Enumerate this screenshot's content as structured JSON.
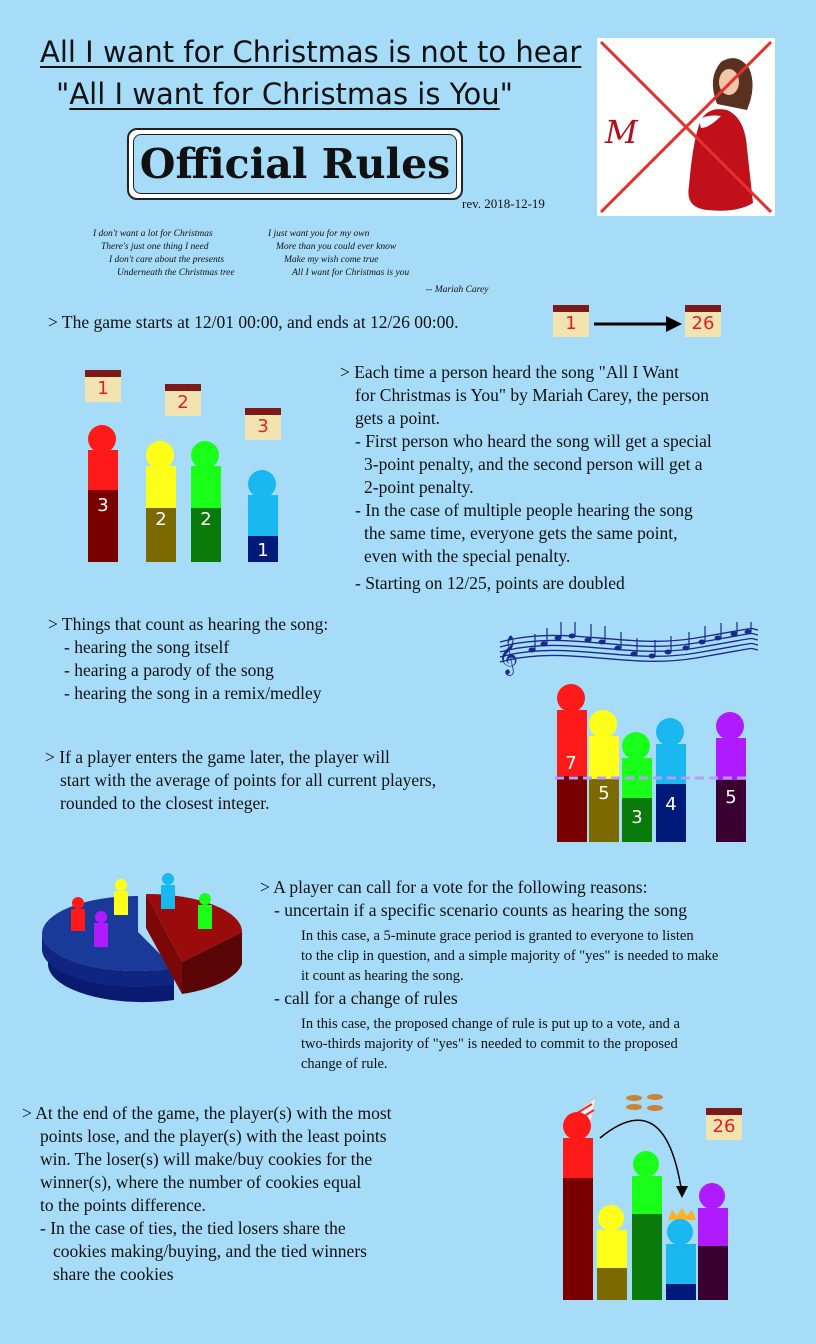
{
  "header": {
    "title_line1": "All I want for Christmas is not to hear",
    "title_line2_q1": "\"",
    "title_line2_u": "All I want for Christmas is You",
    "title_line2_q2": "\"",
    "official": "Official Rules",
    "revision": "rev. 2018-12-19"
  },
  "album_art": {
    "monogram": "M",
    "cross_color": "#e53030"
  },
  "lyrics": {
    "col1": [
      "I don't want a lot for Christmas",
      "There's just one thing I need",
      "I don't care about the presents",
      "Underneath the Christmas tree"
    ],
    "col2": [
      "I just want you for my own",
      "More than you could ever know",
      "Make my wish come true",
      "All I want for Christmas is you"
    ],
    "attribution": "-- Mariah Carey"
  },
  "rules": {
    "start": "> The game starts at 12/01 00:00, and ends at 12/26 00:00.",
    "points": [
      "> Each time a person heard the song \"All I Want",
      "for Christmas is You\" by Mariah Carey, the person",
      "gets a point.",
      "- First person who heard the song will get a special",
      "3-point penalty, and the second person will get a",
      "2-point penalty.",
      "- In the case of multiple people hearing the song",
      "the same time, everyone gets the same point,",
      "even with the special penalty.",
      "- Starting on 12/25, points are doubled"
    ],
    "counts": [
      "> Things that count as hearing the song:",
      "- hearing the song itself",
      "- hearing a parody of the song",
      "- hearing the song in a remix/medley"
    ],
    "late": [
      "> If a player enters the game later, the player will",
      "start with the average of points for all current players,",
      "rounded to the closest integer."
    ],
    "vote": {
      "intro": "> A player can call for a vote for the following reasons:",
      "reason1": "- uncertain if a specific scenario counts as hearing the song",
      "detail1": [
        "In this case, a 5-minute grace period is granted to everyone to listen",
        "to the clip in question, and a simple majority of \"yes\" is needed to make",
        "it count as hearing the song."
      ],
      "reason2": "- call for a change of rules",
      "detail2": [
        "In this case, the proposed change of rule is put up to a vote, and a",
        "two-thirds majority of \"yes\" is needed to commit to the proposed",
        "change of rule."
      ]
    },
    "end": [
      "> At the end of the game, the player(s) with the most",
      "points lose, and the player(s) with the least points",
      "win. The loser(s) will make/buy cookies for the",
      "winner(s), where the number of cookies equal",
      "to the points difference.",
      "- In the case of ties, the tied losers share the",
      "cookies making/buying, and the tied winners",
      "share the cookies"
    ]
  },
  "calendars": {
    "start_day": "1",
    "end_day": "26",
    "podium": [
      "1",
      "2",
      "3"
    ],
    "final": "26"
  },
  "podium_scores": [
    "3",
    "2",
    "2",
    "1"
  ],
  "late_scores": [
    "7",
    "5",
    "3",
    "4",
    "5"
  ],
  "colors": {
    "background": "#a6dcf8",
    "red": "#ff1a1a",
    "dark_red": "#7a0000",
    "yellow": "#ffff1a",
    "olive": "#7a6a00",
    "green": "#1aff1a",
    "dark_green": "#0a7a0a",
    "cyan": "#1ab8f0",
    "navy": "#001a7a",
    "purple": "#b01aff",
    "dark_purple": "#3a0030",
    "avg_line": "#b89cff"
  }
}
